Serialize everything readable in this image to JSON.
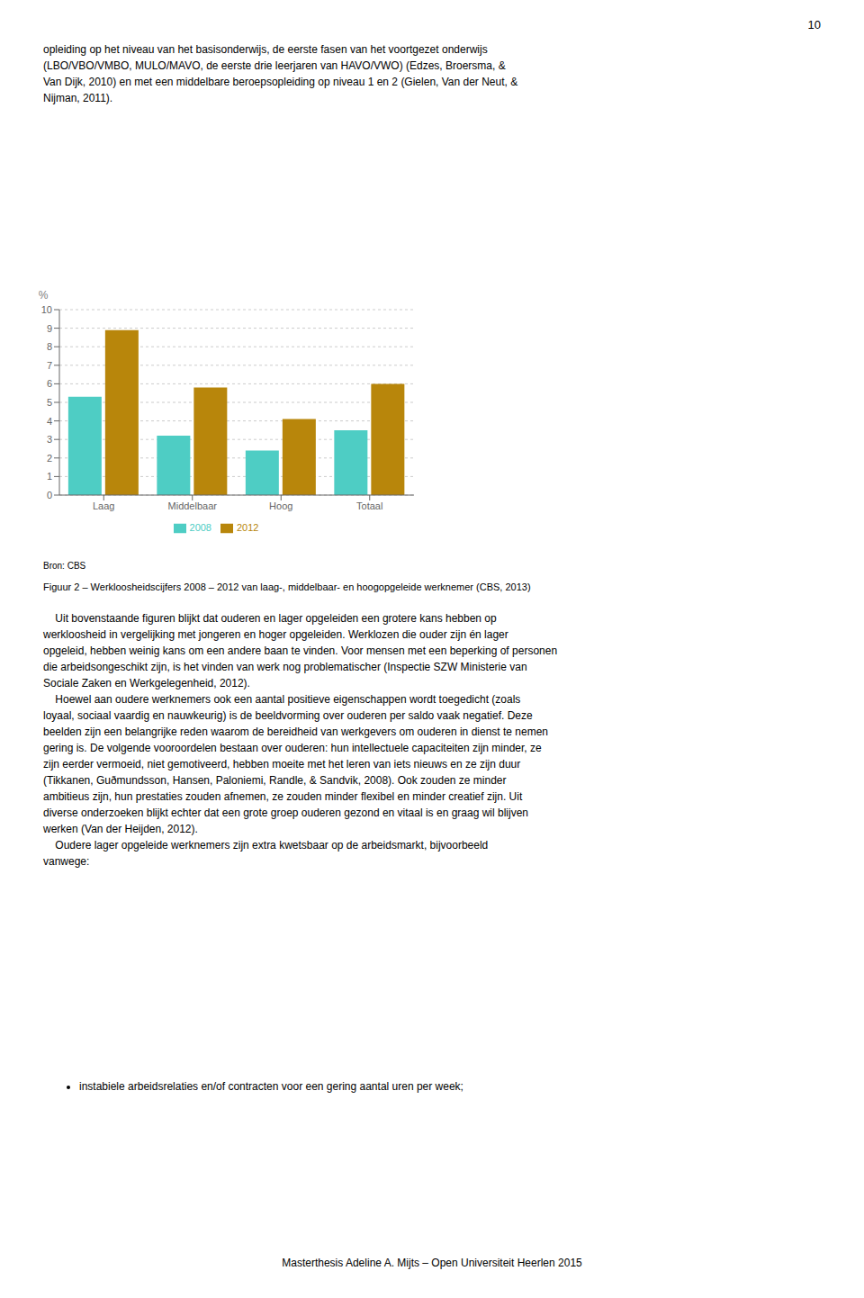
{
  "chart_data": {
    "type": "bar",
    "categories": [
      "Laag",
      "Middelbaar",
      "Hoog",
      "Totaal"
    ],
    "series": [
      {
        "name": "2008",
        "color": "#4ECDC4",
        "values": [
          5.3,
          3.2,
          2.4,
          3.5
        ]
      },
      {
        "name": "2012",
        "color": "#B8860B",
        "values": [
          8.9,
          5.8,
          4.1,
          6.0
        ]
      }
    ],
    "y_label": "%",
    "ylim": [
      0,
      10
    ],
    "yticks": [
      0,
      1,
      2,
      3,
      4,
      5,
      6,
      7,
      8,
      9,
      10
    ],
    "grid": true,
    "legend": "bottom",
    "annotations": [
      "10",
      "opleiding op het niveau van het basisonderwijs, de eerste fasen van het voortgezet onderwijs\n(LBO/VBO/VMBO, MULO/MAVO, de eerste drie leerjaren van HAVO/VWO) (Edzes, Broersma, &\nVan Dijk, 2010) en met een middelbare beroepsopleiding op niveau 1 en 2 (Gielen, Van der Neut, &\nNijman, 2011).",
      "Bron: CBS",
      "Figuur 2 – Werkloosheidscijfers 2008 – 2012 van laag-, middelbaar- en hoogopgeleide werknemer (CBS, 2013)",
      "    Uit bovenstaande figuren blijkt dat ouderen en lager opgeleiden een grotere kans hebben op\nwerkloosheid in vergelijking met jongeren en hoger opgeleiden. Werklozen die ouder zijn én lager\nopgeleid, hebben weinig kans om een andere baan te vinden. Voor mensen met een beperking of personen\ndie arbeidsongeschikt zijn, is het vinden van werk nog problematischer (Inspectie SZW Ministerie van\nSociale Zaken en Werkgelegenheid, 2012).\n    Hoewel aan oudere werknemers ook een aantal positieve eigenschappen wordt toegedicht (zoals\nloyaal, sociaal vaardig en nauwkeurig) is de beeldvorming over ouderen per saldo vaak negatief. Deze\nbeelden zijn een belangrijke reden waarom de bereidheid van werkgevers om ouderen in dienst te nemen\ngering is. De volgende vooroordelen bestaan over ouderen: hun intellectuele capaciteiten zijn minder, ze\nzijn eerder vermoeid, niet gemotiveerd, hebben moeite met het leren van iets nieuws en ze zijn duur\n(Tikkanen, Guðmundsson, Hansen, Paloniemi, Randle, & Sandvik, 2008). Ook zouden ze minder\nambitieus zijn, hun prestaties zouden afnemen, ze zouden minder flexibel en minder creatief zijn. Uit\ndiverse onderzoeken blijkt echter dat een grote groep ouderen gezond en vitaal is en graag wil blijven\nwerken (Van der Heijden, 2012).\n    Oudere lager opgeleide werknemers zijn extra kwetsbaar op de arbeidsmarkt, bijvoorbeeld\nvanwege:",
      "instabiele arbeidsrelaties en/of contracten voor een gering aantal uren per week;",
      "Masterthesis Adeline A. Mijts – Open Universiteit Heerlen 2015"
    ]
  }
}
